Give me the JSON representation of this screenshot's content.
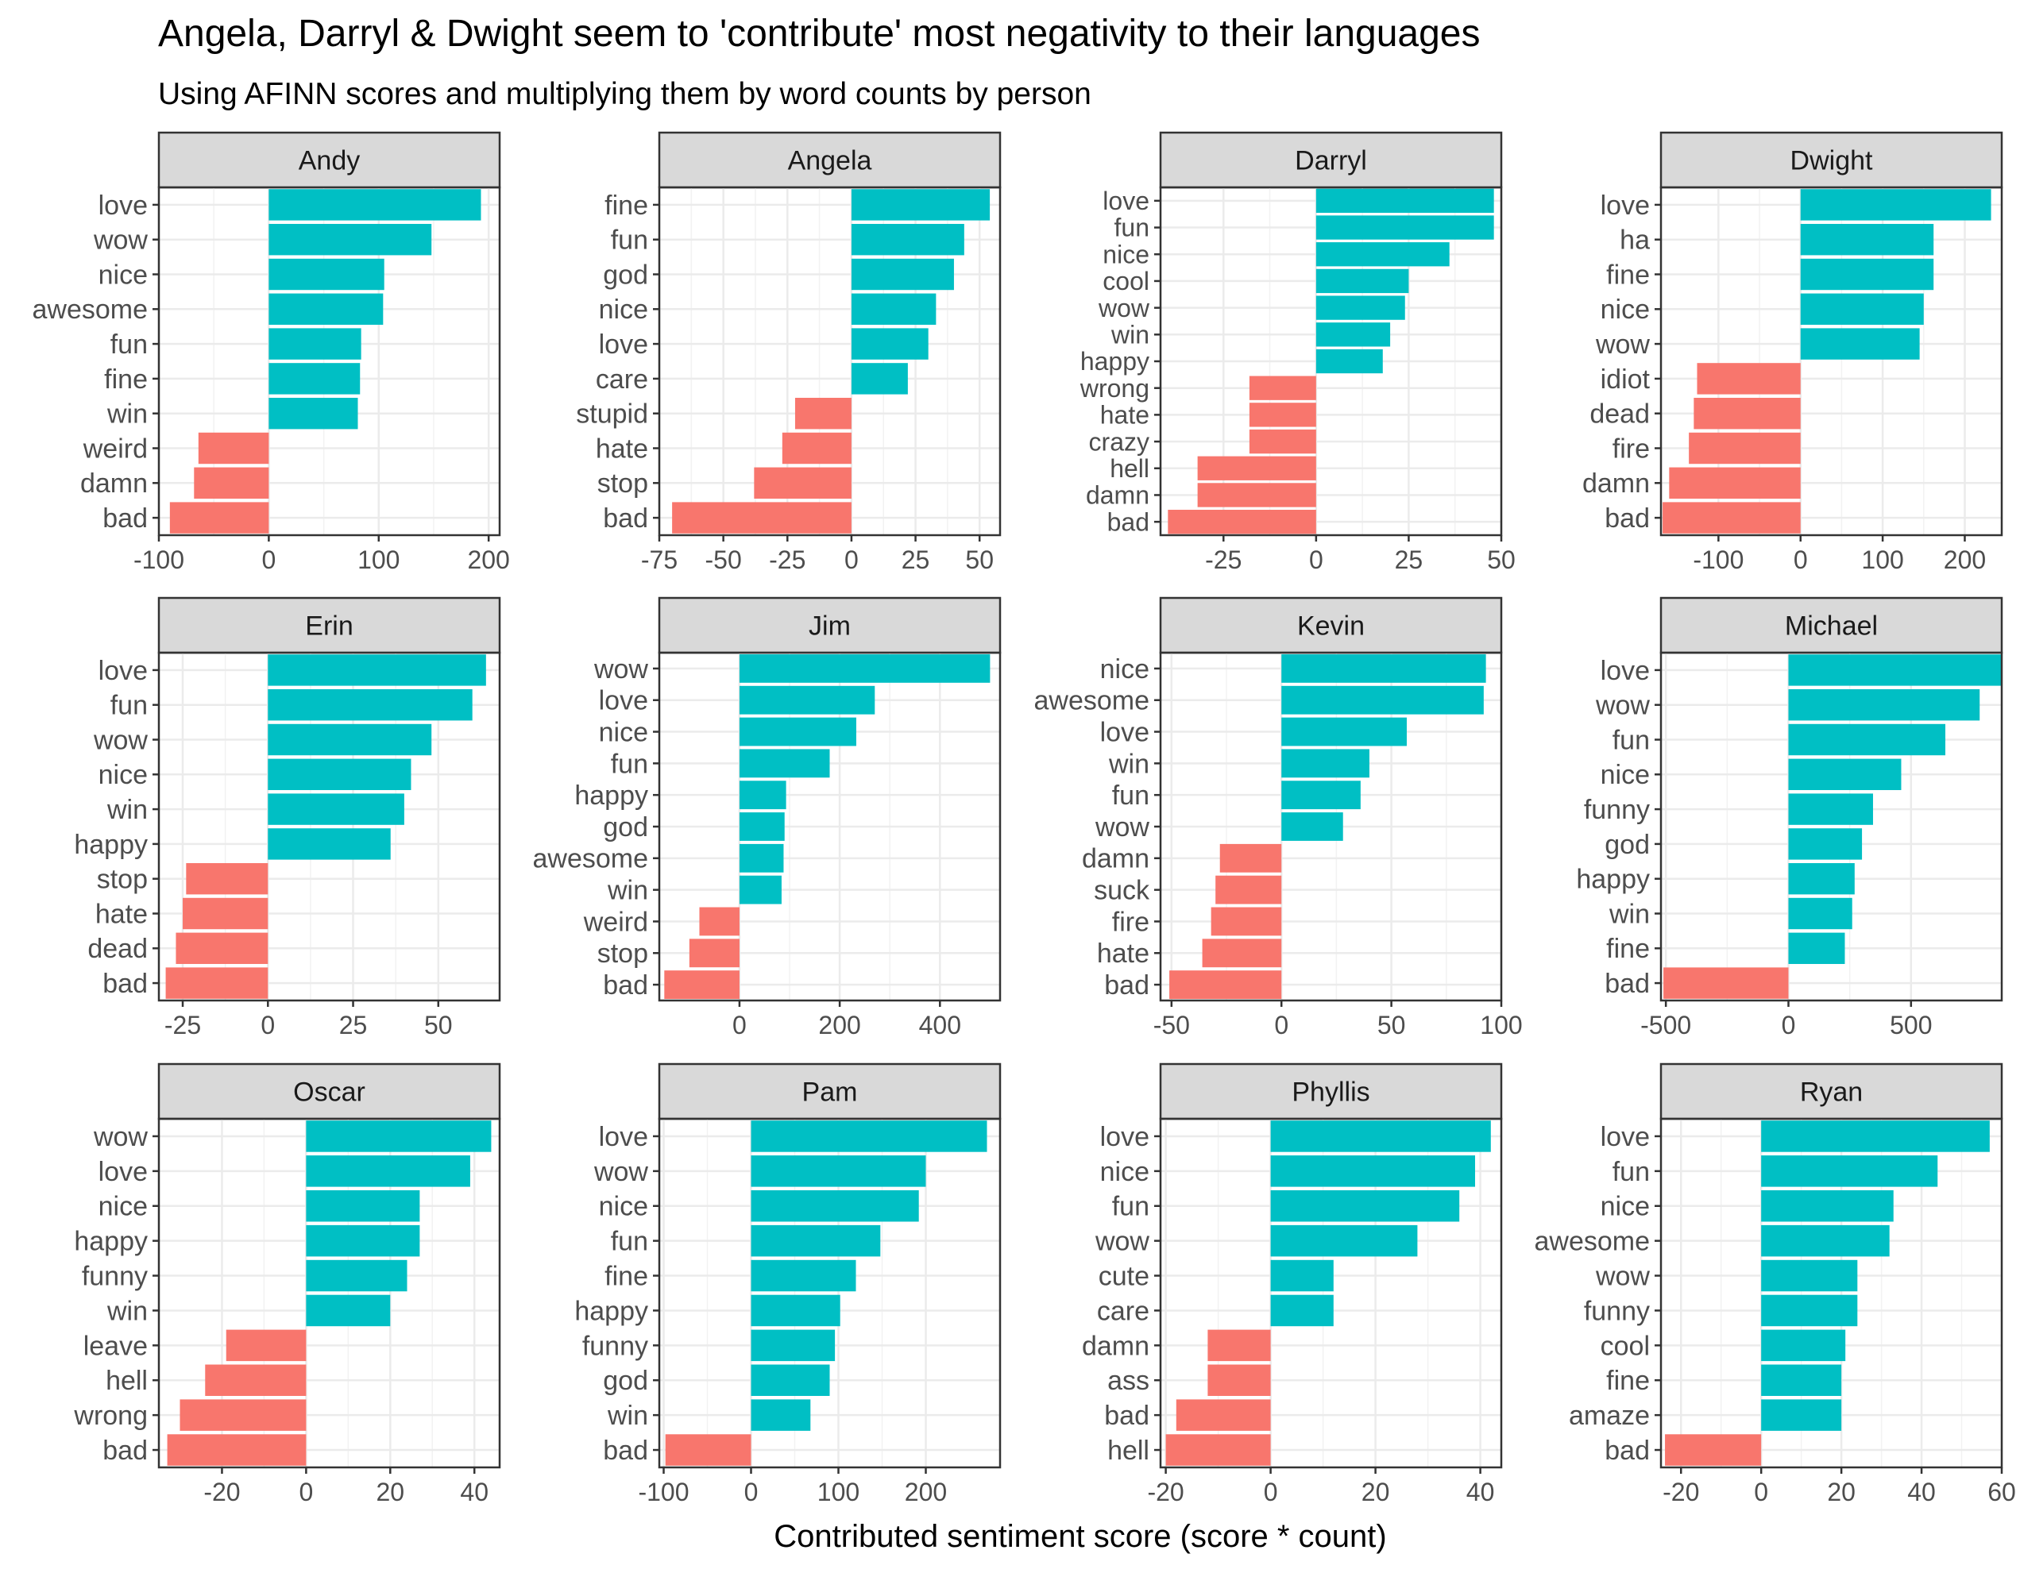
{
  "title": "Angela, Darryl & Dwight seem to 'contribute' most negativity to their languages",
  "subtitle": "Using AFINN scores and multiplying them by word counts by person",
  "xlabel": "Contributed sentiment score (score * count)",
  "colors": {
    "positive": "#00BFC4",
    "negative": "#F8766D",
    "strip_fill": "#D9D9D9",
    "grid": "#EBEBEB",
    "text": "#000000",
    "tick_text": "#4D4D4D"
  },
  "chart_data": [
    {
      "type": "bar",
      "panel": "Andy",
      "xlim": [
        -100,
        210
      ],
      "ticks": [
        -100,
        0,
        100,
        200
      ],
      "categories": [
        "love",
        "wow",
        "nice",
        "awesome",
        "fun",
        "fine",
        "win",
        "weird",
        "damn",
        "bad"
      ],
      "values": [
        193,
        148,
        105,
        104,
        84,
        83,
        81,
        -64,
        -68,
        -90
      ]
    },
    {
      "type": "bar",
      "panel": "Angela",
      "xlim": [
        -75,
        58
      ],
      "ticks": [
        -75,
        -50,
        -25,
        0,
        25,
        50
      ],
      "categories": [
        "fine",
        "fun",
        "god",
        "nice",
        "love",
        "care",
        "stupid",
        "hate",
        "stop",
        "bad"
      ],
      "values": [
        54,
        44,
        40,
        33,
        30,
        22,
        -22,
        -27,
        -38,
        -70
      ]
    },
    {
      "type": "bar",
      "panel": "Darryl",
      "xlim": [
        -42,
        50
      ],
      "ticks": [
        -25,
        0,
        25,
        50
      ],
      "categories": [
        "love",
        "fun",
        "nice",
        "cool",
        "wow",
        "win",
        "happy",
        "wrong",
        "hate",
        "crazy",
        "hell",
        "damn",
        "bad"
      ],
      "values": [
        48,
        48,
        36,
        25,
        24,
        20,
        18,
        -18,
        -18,
        -18,
        -32,
        -32,
        -40
      ]
    },
    {
      "type": "bar",
      "panel": "Dwight",
      "xlim": [
        -170,
        245
      ],
      "ticks": [
        -100,
        0,
        100,
        200
      ],
      "categories": [
        "love",
        "ha",
        "fine",
        "nice",
        "wow",
        "idiot",
        "dead",
        "fire",
        "damn",
        "bad"
      ],
      "values": [
        232,
        162,
        162,
        150,
        145,
        -126,
        -130,
        -136,
        -160,
        -168
      ]
    },
    {
      "type": "bar",
      "panel": "Erin",
      "xlim": [
        -32,
        68
      ],
      "ticks": [
        -25,
        0,
        25,
        50
      ],
      "categories": [
        "love",
        "fun",
        "wow",
        "nice",
        "win",
        "happy",
        "stop",
        "hate",
        "dead",
        "bad"
      ],
      "values": [
        64,
        60,
        48,
        42,
        40,
        36,
        -24,
        -25,
        -27,
        -30
      ]
    },
    {
      "type": "bar",
      "panel": "Jim",
      "xlim": [
        -160,
        520
      ],
      "ticks": [
        0,
        200,
        400
      ],
      "categories": [
        "wow",
        "love",
        "nice",
        "fun",
        "happy",
        "god",
        "awesome",
        "win",
        "weird",
        "stop",
        "bad"
      ],
      "values": [
        500,
        270,
        233,
        180,
        93,
        90,
        88,
        84,
        -80,
        -100,
        -150
      ]
    },
    {
      "type": "bar",
      "panel": "Kevin",
      "xlim": [
        -55,
        100
      ],
      "ticks": [
        -50,
        0,
        50,
        100
      ],
      "categories": [
        "nice",
        "awesome",
        "love",
        "win",
        "fun",
        "wow",
        "damn",
        "suck",
        "fire",
        "hate",
        "bad"
      ],
      "values": [
        93,
        92,
        57,
        40,
        36,
        28,
        -28,
        -30,
        -32,
        -36,
        -51
      ]
    },
    {
      "type": "bar",
      "panel": "Michael",
      "xlim": [
        -520,
        870
      ],
      "ticks": [
        -500,
        0,
        500
      ],
      "categories": [
        "love",
        "wow",
        "fun",
        "nice",
        "funny",
        "god",
        "happy",
        "win",
        "fine",
        "bad"
      ],
      "values": [
        870,
        780,
        640,
        460,
        345,
        300,
        270,
        260,
        230,
        -510
      ]
    },
    {
      "type": "bar",
      "panel": "Oscar",
      "xlim": [
        -35,
        46
      ],
      "ticks": [
        -20,
        0,
        20,
        40
      ],
      "categories": [
        "wow",
        "love",
        "nice",
        "happy",
        "funny",
        "win",
        "leave",
        "hell",
        "wrong",
        "bad"
      ],
      "values": [
        44,
        39,
        27,
        27,
        24,
        20,
        -19,
        -24,
        -30,
        -33
      ]
    },
    {
      "type": "bar",
      "panel": "Pam",
      "xlim": [
        -105,
        285
      ],
      "ticks": [
        -100,
        0,
        100,
        200
      ],
      "categories": [
        "love",
        "wow",
        "nice",
        "fun",
        "fine",
        "happy",
        "funny",
        "god",
        "win",
        "bad"
      ],
      "values": [
        270,
        200,
        192,
        148,
        120,
        102,
        96,
        90,
        68,
        -98
      ]
    },
    {
      "type": "bar",
      "panel": "Phyllis",
      "xlim": [
        -21,
        44
      ],
      "ticks": [
        -20,
        0,
        20,
        40
      ],
      "categories": [
        "love",
        "nice",
        "fun",
        "wow",
        "cute",
        "care",
        "damn",
        "ass",
        "bad",
        "hell"
      ],
      "values": [
        42,
        39,
        36,
        28,
        12,
        12,
        -12,
        -12,
        -18,
        -20
      ]
    },
    {
      "type": "bar",
      "panel": "Ryan",
      "xlim": [
        -25,
        60
      ],
      "ticks": [
        -20,
        0,
        20,
        40,
        60
      ],
      "categories": [
        "love",
        "fun",
        "nice",
        "awesome",
        "wow",
        "funny",
        "cool",
        "fine",
        "amaze",
        "bad"
      ],
      "values": [
        57,
        44,
        33,
        32,
        24,
        24,
        21,
        20,
        20,
        -24
      ]
    }
  ]
}
